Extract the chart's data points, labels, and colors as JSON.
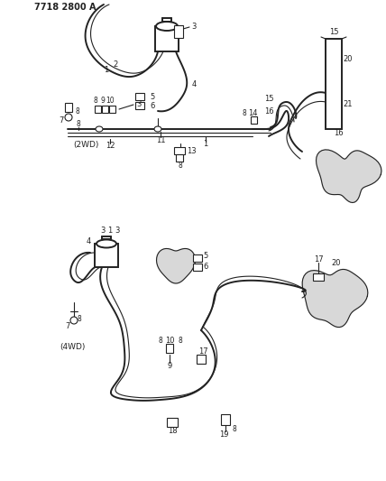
{
  "title": "7718 2800 A",
  "bg_color": "#ffffff",
  "line_color": "#222222",
  "fig_width": 4.28,
  "fig_height": 5.33,
  "label_2wd": "(2WD)",
  "label_4wd": "(4WD)"
}
